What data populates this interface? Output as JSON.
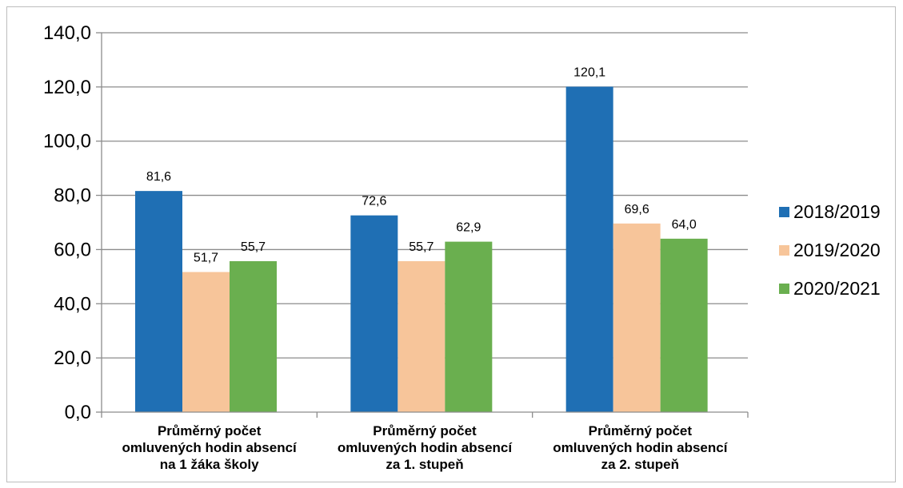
{
  "chart_data": {
    "type": "bar",
    "categories": [
      [
        "Průměrný počet",
        "omluvených hodin absencí",
        "na 1 žáka školy"
      ],
      [
        "Průměrný počet",
        "omluvených hodin absencí",
        "za 1. stupeň"
      ],
      [
        "Průměrný počet",
        "omluvených hodin absencí",
        "za 2. stupeň"
      ]
    ],
    "series": [
      {
        "name": "2018/2019",
        "color": "#1f6fb4",
        "values": [
          81.6,
          72.6,
          120.1
        ],
        "labels": [
          "81,6",
          "72,6",
          "120,1"
        ]
      },
      {
        "name": "2019/2020",
        "color": "#f7c59a",
        "values": [
          51.7,
          55.7,
          69.6
        ],
        "labels": [
          "51,7",
          "55,7",
          "69,6"
        ]
      },
      {
        "name": "2020/2021",
        "color": "#6aaf4f",
        "values": [
          55.7,
          62.9,
          64.0
        ],
        "labels": [
          "55,7",
          "62,9",
          "64,0"
        ]
      }
    ],
    "ylim": [
      0,
      140
    ],
    "yticks": [
      0,
      20,
      40,
      60,
      80,
      100,
      120,
      140
    ],
    "ytick_labels": [
      "0,0",
      "20,0",
      "40,0",
      "60,0",
      "80,0",
      "100,0",
      "120,0",
      "140,0"
    ],
    "grid": true,
    "legend_position": "right"
  }
}
